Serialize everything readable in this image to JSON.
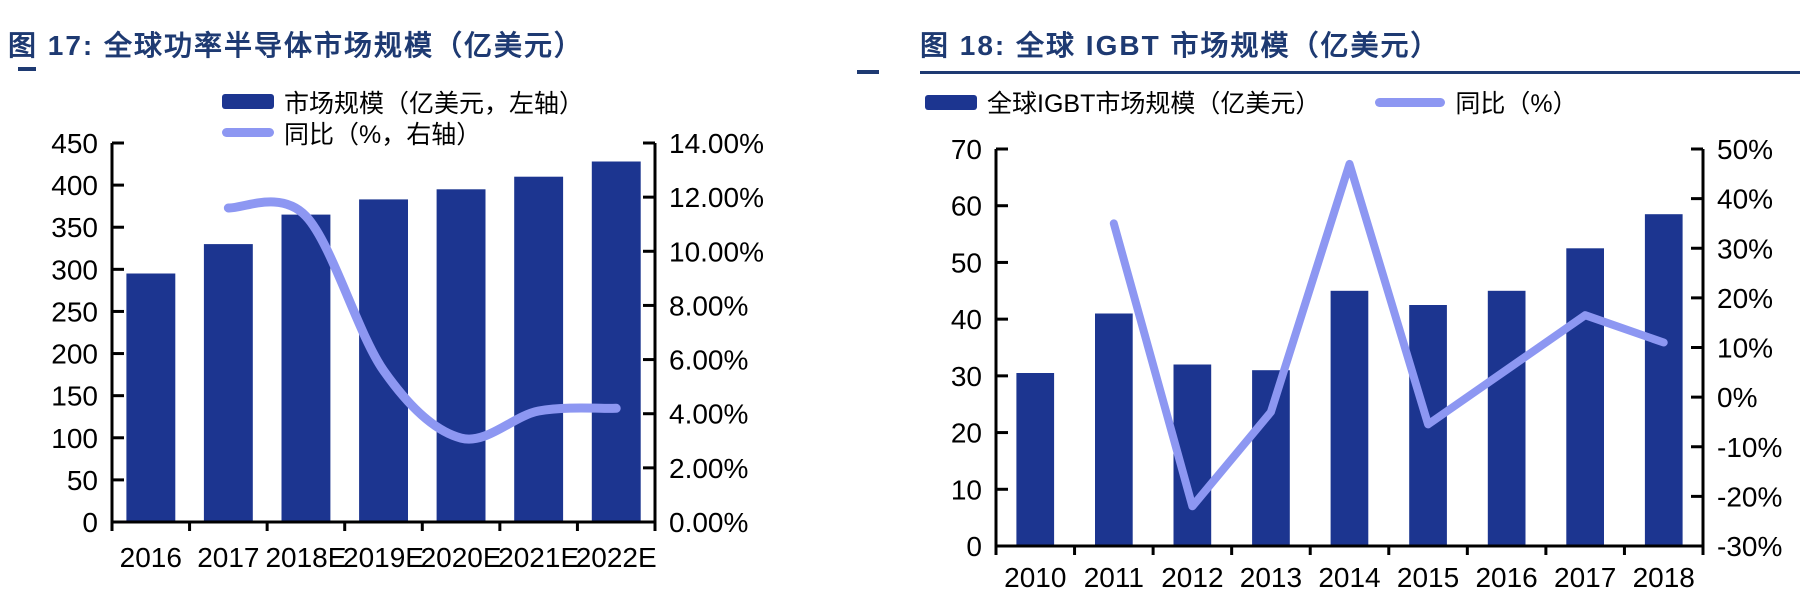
{
  "colors": {
    "bar": "#1c3590",
    "line": "#8d97f2",
    "title": "#1e3a72",
    "axis": "#000000"
  },
  "figures": [
    {
      "title": "图 17:  全球功率半导体市场规模（亿美元）",
      "legend": [
        {
          "label": "市场规模（亿美元，左轴）"
        },
        {
          "label": "同比（%，右轴）"
        }
      ]
    },
    {
      "title": "图 18:  全球 IGBT 市场规模（亿美元）",
      "legend": [
        {
          "label": "全球IGBT市场规模（亿美元）"
        },
        {
          "label": "同比（%）"
        }
      ]
    }
  ],
  "chart_data": [
    {
      "type": "bar",
      "combo": "bar+line",
      "title": "全球功率半导体市场规模（亿美元）",
      "categories": [
        "2016",
        "2017",
        "2018E",
        "2019E",
        "2020E",
        "2021E",
        "2022E"
      ],
      "series": [
        {
          "name": "市场规模（亿美元，左轴）",
          "type": "bar",
          "axis": "left",
          "values": [
            295,
            330,
            365,
            383,
            395,
            410,
            428
          ]
        },
        {
          "name": "同比（%，右轴）",
          "type": "line",
          "axis": "right",
          "smooth": true,
          "values": [
            null,
            11.6,
            11.3,
            5.6,
            3.1,
            4.1,
            4.2
          ]
        }
      ],
      "left_axis": {
        "min": 0,
        "max": 450,
        "tick_labels": [
          "0",
          "50",
          "100",
          "150",
          "200",
          "250",
          "300",
          "350",
          "400",
          "450"
        ]
      },
      "right_axis": {
        "min": 0,
        "max": 14,
        "tick_labels": [
          "0.00%",
          "2.00%",
          "4.00%",
          "6.00%",
          "8.00%",
          "10.00%",
          "12.00%",
          "14.00%"
        ]
      },
      "grid": false,
      "legend_position": "top"
    },
    {
      "type": "bar",
      "combo": "bar+line",
      "title": "全球 IGBT 市场规模（亿美元）",
      "categories": [
        "2010",
        "2011",
        "2012",
        "2013",
        "2014",
        "2015",
        "2016",
        "2017",
        "2018"
      ],
      "series": [
        {
          "name": "全球IGBT市场规模（亿美元）",
          "type": "bar",
          "axis": "left",
          "values": [
            30.5,
            41,
            32,
            31,
            45,
            42.5,
            45,
            52.5,
            58.5
          ]
        },
        {
          "name": "同比（%）",
          "type": "line",
          "axis": "right",
          "smooth": false,
          "values": [
            null,
            35,
            -22,
            -3,
            47,
            -5.5,
            5.5,
            16.5,
            11
          ]
        }
      ],
      "left_axis": {
        "min": 0,
        "max": 70,
        "tick_labels": [
          "0",
          "10",
          "20",
          "30",
          "40",
          "50",
          "60",
          "70"
        ]
      },
      "right_axis": {
        "min": -30,
        "max": 50,
        "tick_labels": [
          "-30%",
          "-20%",
          "-10%",
          "0%",
          "10%",
          "20%",
          "30%",
          "40%",
          "50%"
        ]
      },
      "grid": false,
      "legend_position": "top"
    }
  ]
}
